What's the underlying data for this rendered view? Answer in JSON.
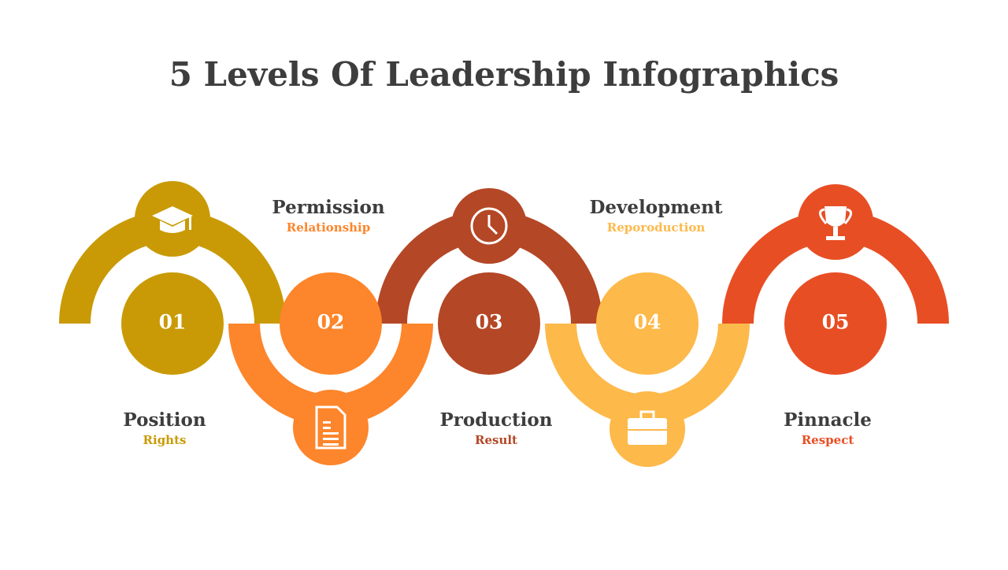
{
  "header": {
    "title": "5 Levels Of Leadership Infographics"
  },
  "levels": [
    {
      "number": "01",
      "title": "Position",
      "subtitle": "Rights"
    },
    {
      "number": "02",
      "title": "Permission",
      "subtitle": "Relationship"
    },
    {
      "number": "03",
      "title": "Production",
      "subtitle": "Result"
    },
    {
      "number": "04",
      "title": "Development",
      "subtitle": "Reporoduction"
    },
    {
      "number": "05",
      "title": "Pinnacle",
      "subtitle": "Respect"
    }
  ]
}
